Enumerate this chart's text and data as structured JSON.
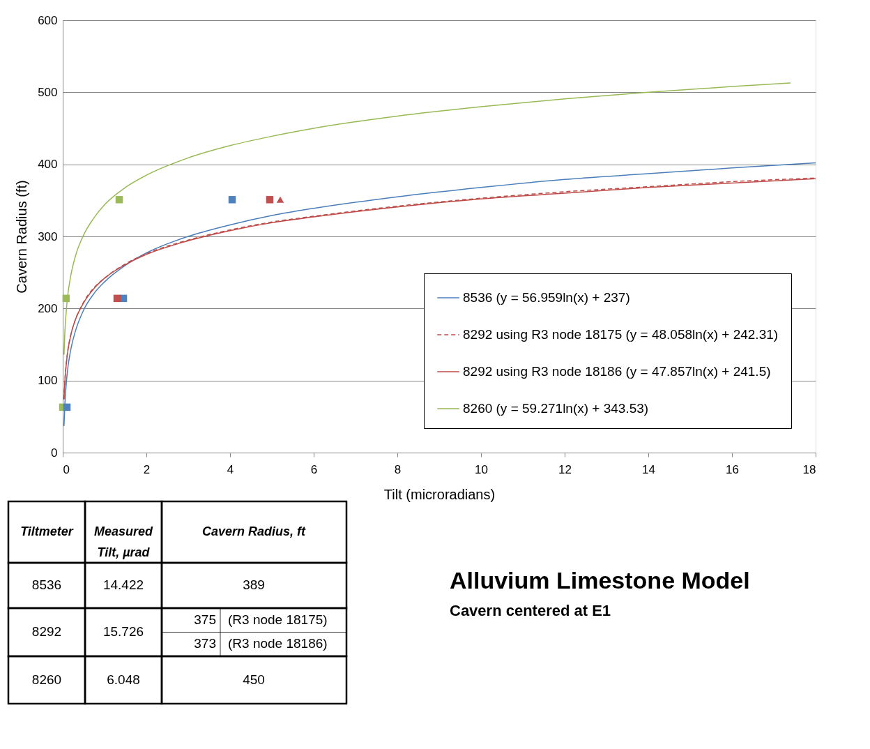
{
  "chart_data": [
    {
      "type": "line",
      "title": "Alluvium Limestone Model",
      "subtitle": "Cavern centered at E1",
      "xlabel": "Tilt (microradians)",
      "ylabel": "Cavern Radius (ft)",
      "xlim": [
        0,
        18
      ],
      "xticks": [
        0,
        2,
        4,
        6,
        8,
        10,
        12,
        14,
        16,
        18
      ],
      "ylim": [
        0,
        600
      ],
      "yticks": [
        0,
        100,
        200,
        300,
        400,
        500,
        600
      ],
      "grid": "y",
      "legend": "bottom right",
      "series": [
        {
          "name": "8536 (y = 56.959ln(x) + 237)",
          "color": "#4a7ebb",
          "line_style": "solid",
          "x": [
            0.03,
            0.05,
            0.1,
            0.2,
            0.3,
            0.5,
            0.75,
            1,
            1.5,
            2,
            3,
            4,
            5,
            6,
            8,
            10,
            12,
            14,
            16,
            18
          ],
          "values": [
            37,
            66,
            106,
            145,
            168,
            198,
            221,
            237,
            260,
            277,
            300,
            316,
            329,
            339,
            355,
            368,
            379,
            387,
            395,
            402
          ]
        },
        {
          "name": "8292 using R3 node 18175 (y = 48.058ln(x) + 242.31)",
          "color": "#be4b48",
          "line_style": "dashed",
          "x": [
            0.03,
            0.05,
            0.1,
            0.2,
            0.3,
            0.5,
            0.75,
            1,
            1.5,
            2,
            3,
            4,
            5,
            6,
            8,
            10,
            12,
            14,
            16,
            18
          ],
          "values": [
            74,
            98,
            132,
            165,
            184,
            209,
            229,
            242,
            262,
            276,
            295,
            309,
            320,
            328,
            342,
            353,
            362,
            369,
            376,
            381
          ]
        },
        {
          "name": "8292 using R3 node 18186 (y = 47.857ln(x) + 241.5)",
          "color": "#be4b48",
          "line_style": "solid",
          "x": [
            0.03,
            0.05,
            0.1,
            0.2,
            0.3,
            0.5,
            0.75,
            1,
            1.5,
            2,
            3,
            4,
            5,
            6,
            8,
            10,
            12,
            14,
            16,
            18
          ],
          "values": [
            74,
            98,
            131,
            165,
            184,
            208,
            228,
            242,
            261,
            275,
            294,
            308,
            319,
            327,
            341,
            352,
            360,
            368,
            374,
            380
          ]
        },
        {
          "name": "8260 (y = 59.271ln(x) + 343.53)",
          "color": "#98b954",
          "line_style": "solid",
          "x": [
            0.03,
            0.05,
            0.1,
            0.2,
            0.3,
            0.5,
            0.75,
            1,
            1.5,
            2,
            3,
            4,
            5,
            6,
            8,
            10,
            12,
            14,
            16,
            17.4
          ],
          "values": [
            136,
            166,
            207,
            248,
            272,
            302,
            326,
            344,
            368,
            385,
            409,
            426,
            439,
            450,
            467,
            480,
            491,
            500,
            508,
            513
          ]
        },
        {
          "type": "scatter",
          "marker": "square",
          "color": "#9bbb59",
          "x": [
            0.0,
            0.08,
            1.35
          ],
          "values": [
            63,
            214,
            351
          ]
        },
        {
          "type": "scatter",
          "marker": "square",
          "color": "#4f81bd",
          "x": [
            0.1,
            1.45,
            4.05
          ],
          "values": [
            63,
            214,
            351
          ]
        },
        {
          "type": "scatter",
          "marker": "square",
          "color": "#c0504d",
          "x": [
            1.3,
            4.95
          ],
          "values": [
            214,
            351
          ]
        },
        {
          "type": "scatter",
          "marker": "triangle",
          "color": "#c0504d",
          "x": [
            5.2
          ],
          "values": [
            351
          ]
        }
      ]
    },
    {
      "type": "other",
      "annotations": [
        "Tiltmeter",
        "Measured Tilt, µrad",
        "Cavern Radius, ft",
        "8536",
        "14.422",
        "389",
        "8292",
        "15.726",
        "375",
        "(R3 node 18175)",
        "373",
        "(R3 node 18186)",
        "8260",
        "6.048",
        "450"
      ]
    }
  ]
}
